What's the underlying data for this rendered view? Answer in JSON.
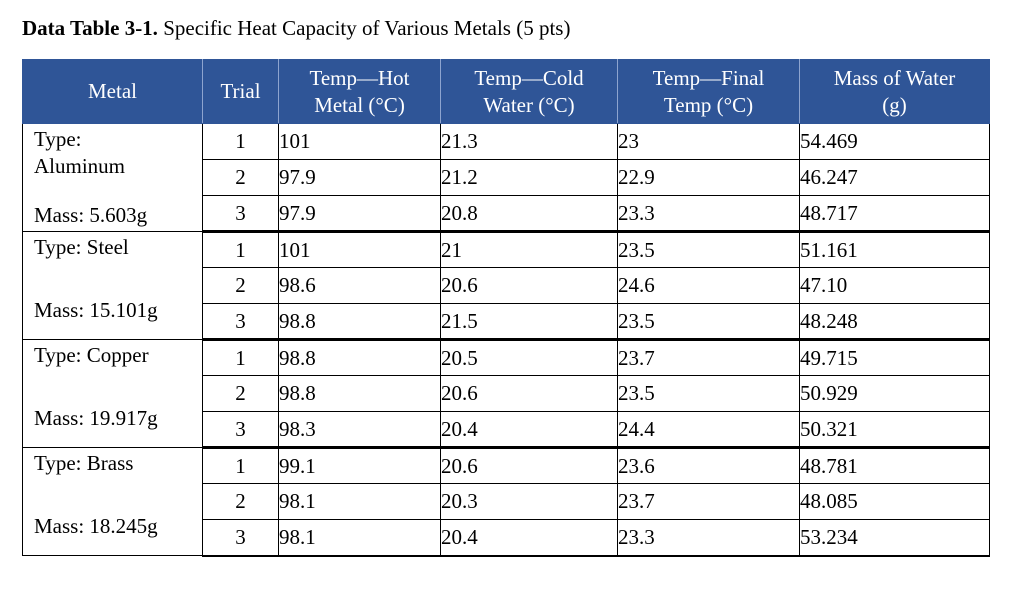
{
  "caption": {
    "bold": "Data Table 3-1.",
    "text": " Specific Heat Capacity of Various Metals (5 pts)"
  },
  "header": {
    "metal": "Metal",
    "trial": "Trial",
    "hot": [
      "Temp—Hot",
      "Metal (°C)"
    ],
    "cold": [
      "Temp—Cold",
      "Water (°C)"
    ],
    "final": [
      "Temp—Final",
      "Temp (°C)"
    ],
    "mass": [
      "Mass of Water",
      "(g)"
    ]
  },
  "colors": {
    "header_bg": "#2f5597",
    "header_text": "#ffffff"
  },
  "groups": [
    {
      "type": "Type: Aluminum",
      "type_lines": [
        "Type:",
        "Aluminum"
      ],
      "mass": "Mass: 5.603g",
      "rows": [
        {
          "trial": "1",
          "hot": "101",
          "cold": "21.3",
          "final": "23",
          "water": "54.469"
        },
        {
          "trial": "2",
          "hot": "97.9",
          "cold": "21.2",
          "final": "22.9",
          "water": "46.247"
        },
        {
          "trial": "3",
          "hot": "97.9",
          "cold": "20.8",
          "final": "23.3",
          "water": "48.717"
        }
      ]
    },
    {
      "type": "Type: Steel",
      "mass": "Mass: 15.101g",
      "rows": [
        {
          "trial": "1",
          "hot": "101",
          "cold": "21",
          "final": "23.5",
          "water": "51.161"
        },
        {
          "trial": "2",
          "hot": "98.6",
          "cold": "20.6",
          "final": "24.6",
          "water": "47.10"
        },
        {
          "trial": "3",
          "hot": "98.8",
          "cold": "21.5",
          "final": "23.5",
          "water": "48.248"
        }
      ]
    },
    {
      "type": "Type: Copper",
      "mass": "Mass: 19.917g",
      "rows": [
        {
          "trial": "1",
          "hot": "98.8",
          "cold": "20.5",
          "final": "23.7",
          "water": "49.715"
        },
        {
          "trial": "2",
          "hot": "98.8",
          "cold": "20.6",
          "final": "23.5",
          "water": "50.929"
        },
        {
          "trial": "3",
          "hot": "98.3",
          "cold": "20.4",
          "final": "24.4",
          "water": "50.321"
        }
      ]
    },
    {
      "type": "Type: Brass",
      "mass": "Mass: 18.245g",
      "rows": [
        {
          "trial": "1",
          "hot": "99.1",
          "cold": "20.6",
          "final": "23.6",
          "water": "48.781"
        },
        {
          "trial": "2",
          "hot": "98.1",
          "cold": "20.3",
          "final": "23.7",
          "water": "48.085"
        },
        {
          "trial": "3",
          "hot": "98.1",
          "cold": "20.4",
          "final": "23.3",
          "water": "53.234"
        }
      ]
    }
  ]
}
